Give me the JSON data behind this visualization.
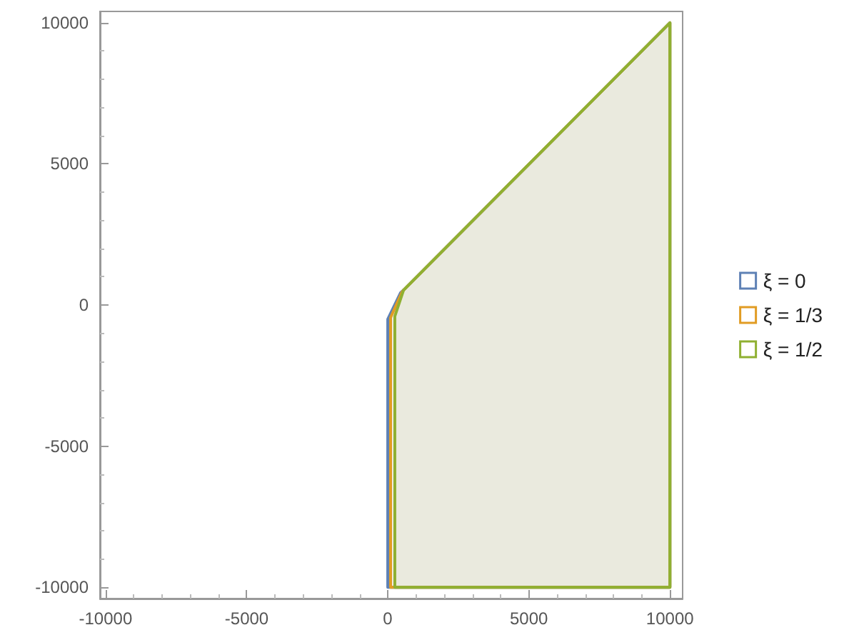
{
  "chart_data": {
    "type": "area",
    "xlim": [
      -10200,
      10450
    ],
    "ylim": [
      -10400,
      10400
    ],
    "xticks": [
      -10000,
      -5000,
      0,
      5000,
      10000
    ],
    "yticks": [
      -10000,
      -5000,
      0,
      5000,
      10000
    ],
    "legend": "right",
    "series": [
      {
        "name": "ξ = 0",
        "color": "#5e81b5",
        "x": [
          0,
          0,
          450,
          560,
          10000,
          10000,
          0
        ],
        "values": [
          -10000,
          -500,
          430,
          530,
          10000,
          -10000,
          -10000
        ]
      },
      {
        "name": "ξ = 1/3",
        "color": "#e19c24",
        "x": [
          100,
          100,
          500,
          560,
          10000,
          10000,
          100
        ],
        "values": [
          -10000,
          -450,
          450,
          530,
          10000,
          -10000,
          -10000
        ]
      },
      {
        "name": "ξ = 1/2",
        "color": "#8fb032",
        "x": [
          250,
          250,
          560,
          10000,
          10000,
          250
        ],
        "values": [
          -10000,
          -400,
          530,
          10000,
          -10000,
          -10000
        ]
      }
    ]
  }
}
